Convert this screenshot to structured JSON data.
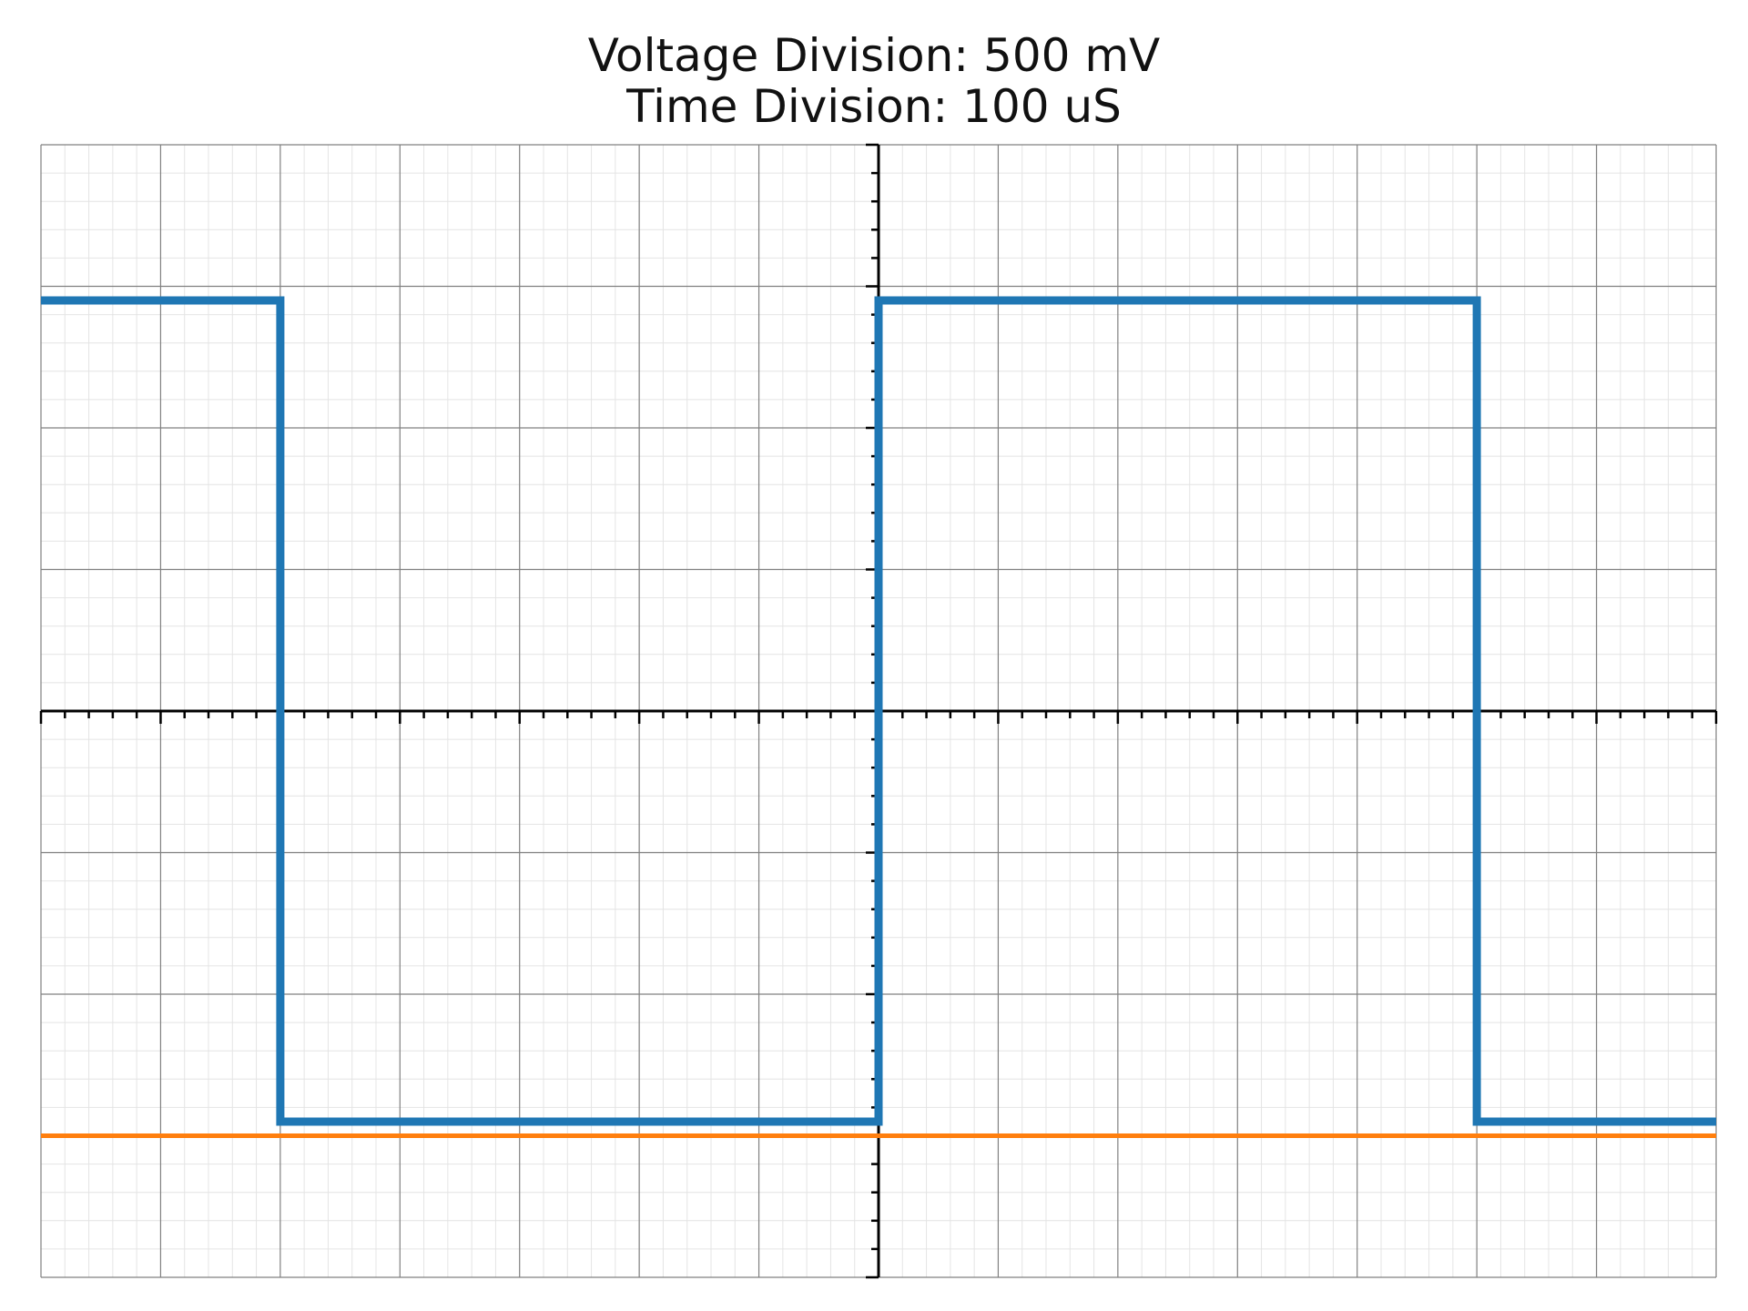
{
  "title": {
    "line1": "Voltage Division: 500 mV",
    "line2": "Time Division: 100 uS"
  },
  "colors": {
    "channel_1": "#1f77b4",
    "channel_2": "#ff7f0e",
    "major_grid": "#808080",
    "minor_grid": "#e4e4e4",
    "axis": "#000000"
  },
  "chart_data": {
    "type": "line",
    "title": "Voltage Division: 500 mV\nTime Division: 100 uS",
    "xlabel": "",
    "ylabel": "",
    "x_unit": "divisions",
    "y_unit": "divisions",
    "xlim": [
      -7,
      7
    ],
    "ylim": [
      -4,
      4
    ],
    "major_grid": true,
    "minor_grid": true,
    "minor_divisions_per_major": 5,
    "center_axes": true,
    "series": [
      {
        "x": [
          -7,
          -5,
          -5,
          0,
          0,
          5,
          5,
          7
        ],
        "y": [
          2.9,
          2.9,
          -2.9,
          -2.9,
          2.9,
          2.9,
          -2.9,
          -2.9
        ]
      },
      {
        "x": [
          -7,
          7
        ],
        "y": [
          -3,
          -3
        ]
      }
    ]
  }
}
